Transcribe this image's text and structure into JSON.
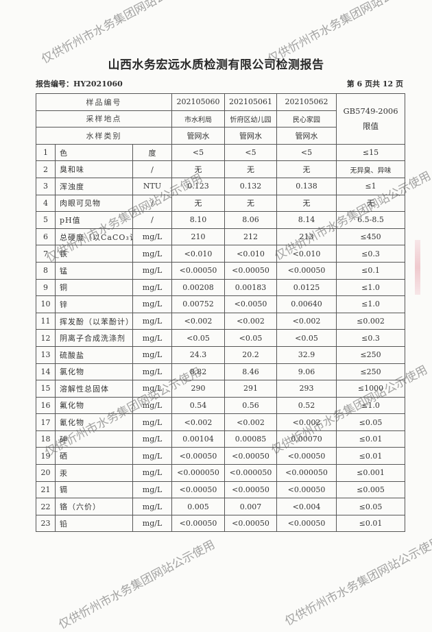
{
  "title": "山西水务宏远水质检测有限公司检测报告",
  "report_no": "报告编号：HY2021060",
  "page_no": "第 6 页共 12 页",
  "watermark": "仅供忻州市水务集团网站公示使用",
  "header": {
    "sample_no_label": "样品编号",
    "location_label": "采样地点",
    "type_label": "水样类别",
    "standard_label": "GB5749-2006 限值",
    "samples": [
      {
        "no": "202105060",
        "location": "市水利局",
        "type": "管网水"
      },
      {
        "no": "202105061",
        "location": "忻府区幼儿园",
        "type": "管网水"
      },
      {
        "no": "202105062",
        "location": "民心家园",
        "type": "管网水"
      }
    ]
  },
  "rows": [
    {
      "n": "1",
      "item": "色",
      "unit": "度",
      "v": [
        "<5",
        "<5",
        "<5"
      ],
      "limit": "≤15"
    },
    {
      "n": "2",
      "item": "臭和味",
      "unit": "/",
      "v": [
        "无",
        "无",
        "无"
      ],
      "limit": "无异臭、异味"
    },
    {
      "n": "3",
      "item": "浑浊度",
      "unit": "NTU",
      "v": [
        "0.123",
        "0.132",
        "0.138"
      ],
      "limit": "≤1"
    },
    {
      "n": "4",
      "item": "肉眼可见物",
      "unit": "/",
      "v": [
        "无",
        "无",
        "无"
      ],
      "limit": "无"
    },
    {
      "n": "5",
      "item": "pH值",
      "unit": "/",
      "v": [
        "8.10",
        "8.06",
        "8.14"
      ],
      "limit": "6.5-8.5"
    },
    {
      "n": "6",
      "item": "总硬度（以CaCO₃计）",
      "unit": "mg/L",
      "v": [
        "210",
        "212",
        "213"
      ],
      "limit": "≤450"
    },
    {
      "n": "7",
      "item": "铁",
      "unit": "mg/L",
      "v": [
        "<0.010",
        "<0.010",
        "<0.010"
      ],
      "limit": "≤0.3"
    },
    {
      "n": "8",
      "item": "锰",
      "unit": "mg/L",
      "v": [
        "<0.00050",
        "<0.00050",
        "<0.00050"
      ],
      "limit": "≤0.1"
    },
    {
      "n": "9",
      "item": "铜",
      "unit": "mg/L",
      "v": [
        "0.00208",
        "0.00183",
        "0.0125"
      ],
      "limit": "≤1.0"
    },
    {
      "n": "10",
      "item": "锌",
      "unit": "mg/L",
      "v": [
        "0.00752",
        "<0.0050",
        "0.00640"
      ],
      "limit": "≤1.0"
    },
    {
      "n": "11",
      "item": "挥发酚（以苯酚计）",
      "unit": "mg/L",
      "v": [
        "<0.002",
        "<0.002",
        "<0.002"
      ],
      "limit": "≤0.002"
    },
    {
      "n": "12",
      "item": "阴离子合成洗涤剂",
      "unit": "mg/L",
      "v": [
        "<0.05",
        "<0.05",
        "<0.05"
      ],
      "limit": "≤0.3"
    },
    {
      "n": "13",
      "item": "硫酸盐",
      "unit": "mg/L",
      "v": [
        "24.3",
        "20.2",
        "32.9"
      ],
      "limit": "≤250"
    },
    {
      "n": "14",
      "item": "氯化物",
      "unit": "mg/L",
      "v": [
        "8.82",
        "8.46",
        "9.06"
      ],
      "limit": "≤250"
    },
    {
      "n": "15",
      "item": "溶解性总固体",
      "unit": "mg/L",
      "v": [
        "290",
        "291",
        "293"
      ],
      "limit": "≤1000"
    },
    {
      "n": "16",
      "item": "氟化物",
      "unit": "mg/L",
      "v": [
        "0.54",
        "0.56",
        "0.52"
      ],
      "limit": "≤1.0"
    },
    {
      "n": "17",
      "item": "氰化物",
      "unit": "mg/L",
      "v": [
        "<0.002",
        "<0.002",
        "<0.002"
      ],
      "limit": "≤0.05"
    },
    {
      "n": "18",
      "item": "砷",
      "unit": "mg/L",
      "v": [
        "0.00104",
        "0.00085",
        "0.00070"
      ],
      "limit": "≤0.01"
    },
    {
      "n": "19",
      "item": "硒",
      "unit": "mg/L",
      "v": [
        "<0.00050",
        "<0.00050",
        "<0.00050"
      ],
      "limit": "≤0.01"
    },
    {
      "n": "20",
      "item": "汞",
      "unit": "mg/L",
      "v": [
        "<0.000050",
        "<0.000050",
        "<0.000050"
      ],
      "limit": "≤0.001"
    },
    {
      "n": "21",
      "item": "镉",
      "unit": "mg/L",
      "v": [
        "<0.00050",
        "<0.00050",
        "<0.00050"
      ],
      "limit": "≤0.005"
    },
    {
      "n": "22",
      "item": "铬（六价）",
      "unit": "mg/L",
      "v": [
        "0.005",
        "0.007",
        "<0.004"
      ],
      "limit": "≤0.05"
    },
    {
      "n": "23",
      "item": "铅",
      "unit": "mg/L",
      "v": [
        "<0.00050",
        "<0.00050",
        "<0.00050"
      ],
      "limit": "≤0.01"
    }
  ]
}
